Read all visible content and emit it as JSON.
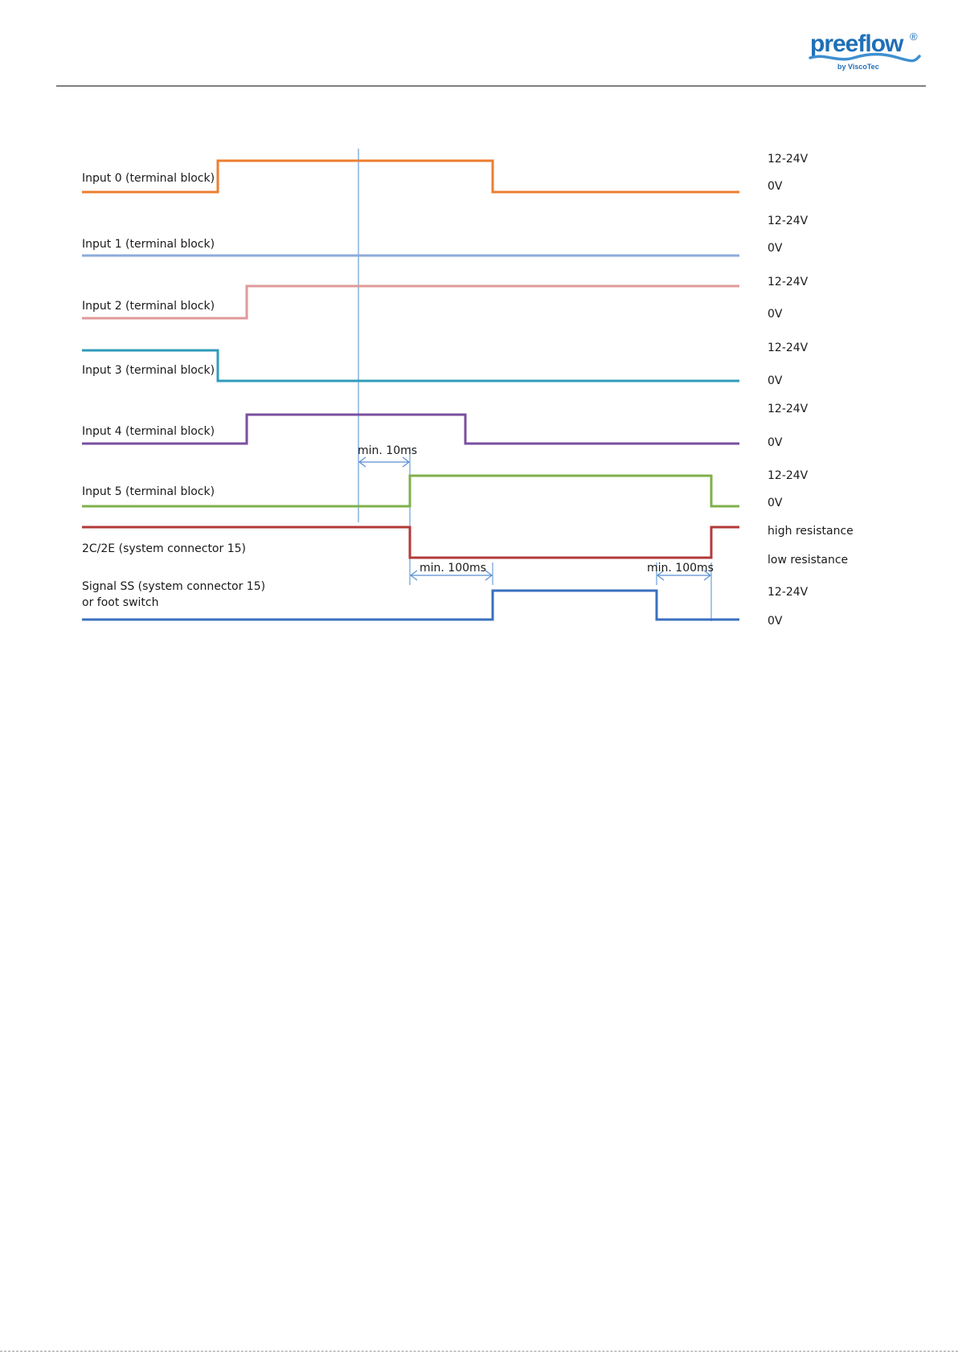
{
  "header": {
    "logo": {
      "brand_text": "preeflow",
      "sub_text": "by ViscoTec",
      "registered_mark": "®",
      "brand_color": "#1f6fb6",
      "wave_color": "#3d8fd0"
    }
  },
  "diagram": {
    "signals": [
      {
        "label": "Input  0 (terminal block)",
        "color": "#ed7d31",
        "high_label": "12-24V",
        "low_label": "0V",
        "levels": [
          [
            "start",
            "low"
          ],
          [
            "t_in0_up",
            "high"
          ],
          [
            "t_in0_dn",
            "low"
          ],
          [
            "end",
            "low"
          ]
        ]
      },
      {
        "label": "Input  1 (terminal block)",
        "color": "#8eaadb",
        "high_label": "12-24V",
        "low_label": "0V",
        "levels": [
          [
            "start",
            "low"
          ],
          [
            "end",
            "low"
          ]
        ]
      },
      {
        "label": "Input  2 (terminal block)",
        "color": "#e0999a",
        "high_label": "12-24V",
        "low_label": "0V",
        "levels": [
          [
            "start",
            "low"
          ],
          [
            "t_in2_up",
            "high"
          ],
          [
            "end",
            "high"
          ]
        ]
      },
      {
        "label": "Input  3 (terminal block)",
        "color": "#2f9bb9",
        "high_label": "12-24V",
        "low_label": "0V",
        "levels": [
          [
            "start",
            "high"
          ],
          [
            "t_in3_dn",
            "low"
          ],
          [
            "end",
            "low"
          ]
        ]
      },
      {
        "label": "Input  4 (terminal block)",
        "color": "#7a4fa0",
        "high_label": "12-24V",
        "low_label": "0V",
        "levels": [
          [
            "start",
            "low"
          ],
          [
            "t_in4_up",
            "high"
          ],
          [
            "t_in4_dn",
            "low"
          ],
          [
            "end",
            "low"
          ]
        ]
      },
      {
        "label": "Input 5 (terminal block)",
        "color": "#7fb04a",
        "high_label": "12-24V",
        "low_label": "0V",
        "levels": [
          [
            "start",
            "low"
          ],
          [
            "t_in5_up",
            "high"
          ],
          [
            "t_in5_dn",
            "low"
          ],
          [
            "end",
            "low"
          ]
        ]
      },
      {
        "label": "2C/2E (system connector 15)",
        "color": "#b23a3a",
        "high_label": "high resistance",
        "low_label": "low resistance",
        "levels": [
          [
            "start",
            "high"
          ],
          [
            "t_in5_up",
            "low"
          ],
          [
            "t_in5_dn",
            "high"
          ],
          [
            "end",
            "high"
          ]
        ]
      },
      {
        "label": "Signal SS (system connector 15)",
        "label_line2": "or foot switch",
        "color": "#3a70bf",
        "high_label": "12-24V",
        "low_label": "0V",
        "levels": [
          [
            "start",
            "low"
          ],
          [
            "t_ss_up",
            "high"
          ],
          [
            "t_ss_dn",
            "low"
          ],
          [
            "end",
            "low"
          ]
        ]
      }
    ],
    "marker_color": "#6a9fd6",
    "annotations": [
      {
        "text": "min. 10ms"
      },
      {
        "text": "min. 100ms"
      },
      {
        "text": "min. 100ms"
      }
    ]
  }
}
